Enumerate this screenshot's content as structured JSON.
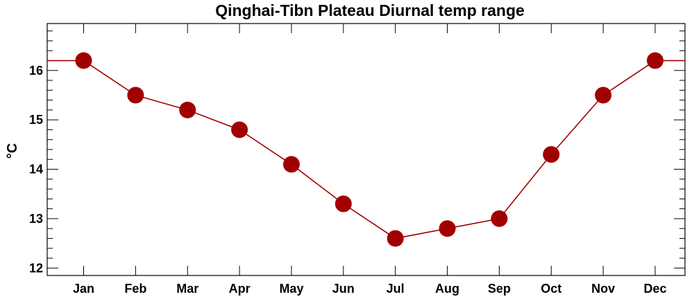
{
  "chart_data": {
    "type": "line",
    "title": "Qinghai-Tibn Plateau Diurnal temp range",
    "ylabel": "°C",
    "xlabel": "",
    "categories": [
      "Jan",
      "Feb",
      "Mar",
      "Apr",
      "May",
      "Jun",
      "Jul",
      "Aug",
      "Sep",
      "Oct",
      "Nov",
      "Dec"
    ],
    "series": [
      {
        "values": [
          16.2,
          15.5,
          15.2,
          14.8,
          14.1,
          13.3,
          12.6,
          12.8,
          13.0,
          14.3,
          15.5,
          16.2
        ],
        "color": "#a00000"
      }
    ],
    "ylim": [
      11.85,
      16.95
    ],
    "yticks": [
      12,
      13,
      14,
      15,
      16
    ],
    "legend": "none",
    "grid": false
  }
}
